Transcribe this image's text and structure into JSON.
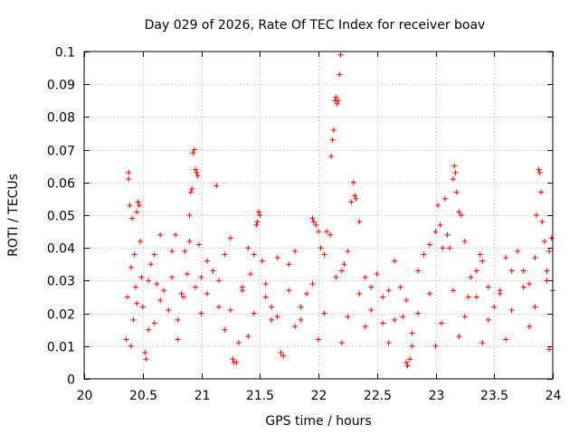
{
  "chart_data": {
    "type": "scatter",
    "title": "Day 029 of 2026, Rate Of TEC Index for receiver boav",
    "xlabel": "GPS time / hours",
    "ylabel": "ROTI / TECUs",
    "xlim": [
      20,
      24
    ],
    "ylim": [
      0,
      0.1
    ],
    "x_ticks": [
      20,
      20.5,
      21,
      21.5,
      22,
      22.5,
      23,
      23.5,
      24
    ],
    "x_tick_labels": [
      "20",
      "20.5",
      "21",
      "21.5",
      "22",
      "22.5",
      "23",
      "23.5",
      "24"
    ],
    "y_ticks": [
      0,
      0.01,
      0.02,
      0.03,
      0.04,
      0.05,
      0.06,
      0.07,
      0.08,
      0.09,
      0.1
    ],
    "y_tick_labels": [
      "0",
      "0.01",
      "0.02",
      "0.03",
      "0.04",
      "0.05",
      "0.06",
      "0.07",
      "0.08",
      "0.09",
      "0.1"
    ],
    "grid": true,
    "marker": "plus",
    "point_color": "#ff0000",
    "series": [
      {
        "name": "ROTI",
        "points": [
          [
            20.36,
            0.012
          ],
          [
            20.37,
            0.025
          ],
          [
            20.38,
            0.063
          ],
          [
            20.38,
            0.061
          ],
          [
            20.39,
            0.053
          ],
          [
            20.4,
            0.034
          ],
          [
            20.41,
            0.049
          ],
          [
            20.42,
            0.018
          ],
          [
            20.43,
            0.038
          ],
          [
            20.44,
            0.028
          ],
          [
            20.45,
            0.051
          ],
          [
            20.46,
            0.054
          ],
          [
            20.47,
            0.053
          ],
          [
            20.48,
            0.042
          ],
          [
            20.49,
            0.031
          ],
          [
            20.5,
            0.022
          ],
          [
            20.52,
            0.008
          ],
          [
            20.53,
            0.006
          ],
          [
            20.55,
            0.015
          ],
          [
            20.57,
            0.035
          ],
          [
            20.6,
            0.038
          ],
          [
            20.62,
            0.029
          ],
          [
            20.65,
            0.044
          ],
          [
            20.68,
            0.027
          ],
          [
            20.72,
            0.021
          ],
          [
            20.75,
            0.039
          ],
          [
            20.78,
            0.044
          ],
          [
            20.8,
            0.018
          ],
          [
            20.83,
            0.026
          ],
          [
            20.86,
            0.039
          ],
          [
            20.88,
            0.032
          ],
          [
            20.9,
            0.042
          ],
          [
            20.9,
            0.05
          ],
          [
            20.91,
            0.057
          ],
          [
            20.92,
            0.058
          ],
          [
            20.93,
            0.069
          ],
          [
            20.94,
            0.07
          ],
          [
            20.95,
            0.064
          ],
          [
            20.96,
            0.063
          ],
          [
            20.97,
            0.062
          ],
          [
            20.98,
            0.041
          ],
          [
            21.0,
            0.031
          ],
          [
            21.05,
            0.036
          ],
          [
            21.1,
            0.033
          ],
          [
            21.13,
            0.059
          ],
          [
            21.15,
            0.022
          ],
          [
            21.2,
            0.038
          ],
          [
            21.25,
            0.043
          ],
          [
            21.27,
            0.006
          ],
          [
            21.28,
            0.005
          ],
          [
            21.3,
            0.005
          ],
          [
            21.32,
            0.011
          ],
          [
            21.35,
            0.028
          ],
          [
            21.4,
            0.04
          ],
          [
            21.42,
            0.032
          ],
          [
            21.45,
            0.038
          ],
          [
            21.47,
            0.047
          ],
          [
            21.48,
            0.048
          ],
          [
            21.49,
            0.051
          ],
          [
            21.5,
            0.05
          ],
          [
            21.52,
            0.036
          ],
          [
            21.55,
            0.029
          ],
          [
            21.6,
            0.022
          ],
          [
            21.65,
            0.037
          ],
          [
            21.68,
            0.008
          ],
          [
            21.7,
            0.007
          ],
          [
            21.75,
            0.035
          ],
          [
            21.8,
            0.039
          ],
          [
            21.85,
            0.018
          ],
          [
            21.9,
            0.026
          ],
          [
            21.95,
            0.049
          ],
          [
            21.96,
            0.048
          ],
          [
            21.98,
            0.047
          ],
          [
            22.0,
            0.045
          ],
          [
            22.02,
            0.04
          ],
          [
            22.05,
            0.038
          ],
          [
            22.07,
            0.045
          ],
          [
            22.1,
            0.044
          ],
          [
            22.11,
            0.068
          ],
          [
            22.12,
            0.073
          ],
          [
            22.13,
            0.076
          ],
          [
            22.14,
            0.085
          ],
          [
            22.15,
            0.086
          ],
          [
            22.16,
            0.084
          ],
          [
            22.17,
            0.085
          ],
          [
            22.18,
            0.093
          ],
          [
            22.19,
            0.099
          ],
          [
            22.2,
            0.033
          ],
          [
            22.22,
            0.035
          ],
          [
            22.25,
            0.039
          ],
          [
            22.28,
            0.054
          ],
          [
            22.3,
            0.06
          ],
          [
            22.31,
            0.056
          ],
          [
            22.32,
            0.055
          ],
          [
            22.35,
            0.048
          ],
          [
            22.4,
            0.031
          ],
          [
            22.45,
            0.028
          ],
          [
            22.5,
            0.032
          ],
          [
            22.55,
            0.017
          ],
          [
            22.6,
            0.027
          ],
          [
            22.65,
            0.036
          ],
          [
            22.7,
            0.028
          ],
          [
            22.72,
            0.019
          ],
          [
            22.75,
            0.005
          ],
          [
            22.76,
            0.004
          ],
          [
            22.78,
            0.006
          ],
          [
            22.8,
            0.01
          ],
          [
            22.85,
            0.033
          ],
          [
            22.9,
            0.038
          ],
          [
            22.95,
            0.041
          ],
          [
            23.0,
            0.045
          ],
          [
            23.02,
            0.053
          ],
          [
            23.04,
            0.047
          ],
          [
            23.06,
            0.04
          ],
          [
            23.08,
            0.055
          ],
          [
            23.1,
            0.044
          ],
          [
            23.12,
            0.04
          ],
          [
            23.15,
            0.061
          ],
          [
            23.16,
            0.065
          ],
          [
            23.17,
            0.063
          ],
          [
            23.18,
            0.057
          ],
          [
            23.2,
            0.051
          ],
          [
            23.22,
            0.05
          ],
          [
            23.25,
            0.042
          ],
          [
            23.28,
            0.025
          ],
          [
            23.3,
            0.031
          ],
          [
            23.35,
            0.033
          ],
          [
            23.38,
            0.038
          ],
          [
            23.4,
            0.036
          ],
          [
            23.45,
            0.028
          ],
          [
            23.5,
            0.022
          ],
          [
            23.55,
            0.027
          ],
          [
            23.6,
            0.037
          ],
          [
            23.65,
            0.033
          ],
          [
            23.7,
            0.039
          ],
          [
            23.75,
            0.033
          ],
          [
            23.8,
            0.029
          ],
          [
            23.85,
            0.037
          ],
          [
            23.86,
            0.05
          ],
          [
            23.88,
            0.064
          ],
          [
            23.89,
            0.063
          ],
          [
            23.9,
            0.057
          ],
          [
            23.91,
            0.048
          ],
          [
            23.93,
            0.042
          ],
          [
            23.95,
            0.033
          ],
          [
            23.97,
            0.039
          ],
          [
            23.99,
            0.043
          ],
          [
            24.0,
            0.027
          ],
          [
            20.4,
            0.01
          ],
          [
            20.6,
            0.017
          ],
          [
            20.8,
            0.012
          ],
          [
            21.0,
            0.02
          ],
          [
            21.2,
            0.015
          ],
          [
            21.4,
            0.013
          ],
          [
            21.6,
            0.018
          ],
          [
            21.8,
            0.016
          ],
          [
            22.0,
            0.012
          ],
          [
            22.2,
            0.011
          ],
          [
            22.4,
            0.016
          ],
          [
            22.6,
            0.011
          ],
          [
            22.8,
            0.014
          ],
          [
            23.0,
            0.01
          ],
          [
            23.2,
            0.013
          ],
          [
            23.4,
            0.011
          ],
          [
            23.6,
            0.012
          ],
          [
            23.8,
            0.016
          ],
          [
            23.97,
            0.009
          ],
          [
            20.45,
            0.023
          ],
          [
            20.65,
            0.024
          ],
          [
            20.85,
            0.025
          ],
          [
            21.05,
            0.026
          ],
          [
            21.25,
            0.021
          ],
          [
            21.45,
            0.02
          ],
          [
            21.65,
            0.019
          ],
          [
            21.85,
            0.022
          ],
          [
            22.05,
            0.02
          ],
          [
            22.25,
            0.019
          ],
          [
            22.45,
            0.021
          ],
          [
            22.65,
            0.018
          ],
          [
            22.85,
            0.02
          ],
          [
            23.05,
            0.017
          ],
          [
            23.25,
            0.019
          ],
          [
            23.45,
            0.018
          ],
          [
            23.65,
            0.021
          ],
          [
            23.85,
            0.022
          ],
          [
            20.55,
            0.03
          ],
          [
            20.75,
            0.031
          ],
          [
            20.95,
            0.028
          ],
          [
            21.15,
            0.03
          ],
          [
            21.35,
            0.027
          ],
          [
            21.55,
            0.025
          ],
          [
            21.75,
            0.027
          ],
          [
            21.95,
            0.029
          ],
          [
            22.15,
            0.031
          ],
          [
            22.35,
            0.026
          ],
          [
            22.55,
            0.025
          ],
          [
            22.75,
            0.024
          ],
          [
            22.95,
            0.026
          ],
          [
            23.15,
            0.027
          ],
          [
            23.35,
            0.025
          ],
          [
            23.55,
            0.026
          ],
          [
            23.75,
            0.028
          ],
          [
            23.95,
            0.03
          ]
        ]
      }
    ]
  }
}
